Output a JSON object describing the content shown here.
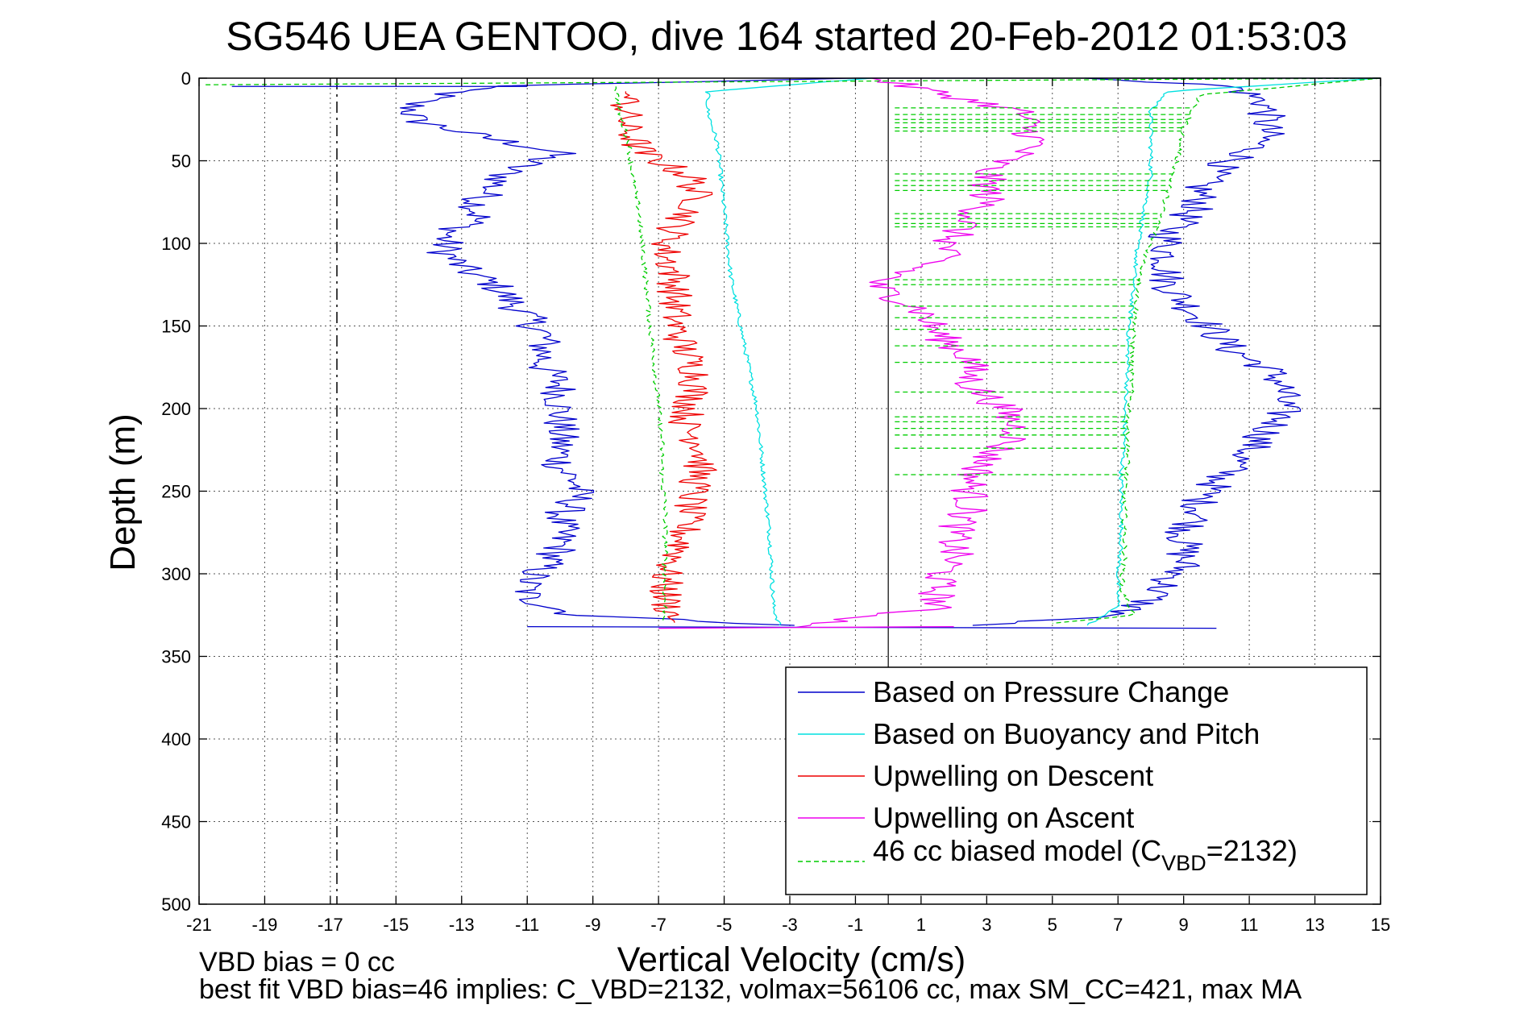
{
  "chart_data": {
    "type": "line",
    "title": "SG546 UEA GENTOO, dive 164 started 20-Feb-2012 01:53:03",
    "xlabel": "Vertical Velocity (cm/s)",
    "ylabel": "Depth (m)",
    "xlim": [
      -21,
      15
    ],
    "ylim": [
      500,
      0
    ],
    "y_reversed": true,
    "grid": true,
    "legend_position": "bottom-right",
    "xticks": [
      "-21",
      "-19",
      "-17",
      "-15",
      "-13",
      "-11",
      "-9",
      "-7",
      "-5",
      "-3",
      "-1",
      "1",
      "3",
      "5",
      "7",
      "9",
      "11",
      "13",
      "15"
    ],
    "yticks": [
      "0",
      "50",
      "100",
      "150",
      "200",
      "250",
      "300",
      "350",
      "400",
      "450",
      "500"
    ],
    "reference_lines": {
      "zero_line_x": 0,
      "dashed_line_x": -16.8
    },
    "series": [
      {
        "name": "Based on Pressure Change",
        "color": "#0000cc",
        "descent": {
          "depth": [
            0,
            5,
            15,
            25,
            35,
            45,
            55,
            65,
            75,
            85,
            95,
            105,
            115,
            125,
            135,
            145,
            155,
            165,
            175,
            185,
            195,
            205,
            215,
            225,
            235,
            245,
            255,
            265,
            275,
            285,
            295,
            305,
            315,
            325,
            332
          ],
          "velocity": [
            -1,
            -12.5,
            -14.5,
            -14.5,
            -12.5,
            -10,
            -11.5,
            -12,
            -12.5,
            -12.5,
            -13.5,
            -13.5,
            -13,
            -12,
            -11.5,
            -11,
            -10.5,
            -10.5,
            -10.5,
            -10,
            -10,
            -10,
            -10,
            -10,
            -10,
            -9.5,
            -9.5,
            -10,
            -10,
            -10,
            -10.5,
            -11,
            -11,
            -9.5,
            -2
          ]
        },
        "ascent": {
          "depth": [
            0,
            5,
            15,
            25,
            35,
            45,
            55,
            65,
            75,
            85,
            95,
            105,
            115,
            125,
            135,
            145,
            155,
            165,
            175,
            185,
            195,
            205,
            215,
            225,
            235,
            245,
            255,
            265,
            275,
            285,
            295,
            305,
            315,
            325,
            332
          ],
          "velocity": [
            6,
            10.5,
            11.5,
            11.5,
            11.5,
            11,
            10,
            9.5,
            9.5,
            9,
            8.5,
            8.5,
            8.5,
            8.5,
            9,
            9.5,
            10,
            10.5,
            11.5,
            12,
            12,
            12,
            11.5,
            11,
            10.5,
            10,
            9.5,
            9.5,
            9,
            9,
            9,
            8.5,
            8,
            7,
            2
          ]
        }
      },
      {
        "name": "Based on Buoyancy and Pitch",
        "color": "#00e0e0",
        "descent": {
          "depth": [
            0,
            8,
            20,
            40,
            60,
            80,
            100,
            120,
            140,
            160,
            180,
            200,
            220,
            240,
            260,
            280,
            300,
            320,
            332
          ],
          "velocity": [
            -0.5,
            -5.5,
            -5.5,
            -5.2,
            -5.1,
            -5,
            -4.9,
            -4.8,
            -4.6,
            -4.4,
            -4.2,
            -4,
            -3.9,
            -3.8,
            -3.7,
            -3.6,
            -3.55,
            -3.5,
            -3.3
          ]
        },
        "ascent": {
          "depth": [
            0,
            8,
            20,
            40,
            60,
            80,
            100,
            120,
            140,
            160,
            180,
            200,
            220,
            240,
            260,
            280,
            300,
            320,
            332
          ],
          "velocity": [
            15,
            8.5,
            8,
            8,
            8,
            7.8,
            7.6,
            7.5,
            7.4,
            7.3,
            7.3,
            7.2,
            7.2,
            7.1,
            7.1,
            7.1,
            7,
            7,
            6
          ]
        }
      },
      {
        "name": "Upwelling on Descent",
        "color": "#ee0000",
        "descent": {
          "depth": [
            8,
            20,
            30,
            45,
            60,
            75,
            90,
            105,
            120,
            135,
            150,
            165,
            180,
            195,
            210,
            225,
            240,
            255,
            270,
            285,
            300,
            315,
            330
          ],
          "velocity": [
            -8,
            -8,
            -8,
            -7.5,
            -6,
            -5.8,
            -6.5,
            -6.8,
            -6.5,
            -6.5,
            -6.5,
            -6.2,
            -5.8,
            -6,
            -6.2,
            -5.6,
            -5.8,
            -6,
            -6.2,
            -6.3,
            -6.8,
            -6.8,
            -6.5
          ]
        }
      },
      {
        "name": "Upwelling on Ascent",
        "color": "#ee00ee",
        "ascent": {
          "depth": [
            0,
            20,
            40,
            55,
            75,
            95,
            110,
            125,
            140,
            155,
            170,
            185,
            200,
            215,
            230,
            245,
            260,
            275,
            290,
            305,
            320,
            333
          ],
          "velocity": [
            -0.5,
            4,
            4.5,
            3,
            3,
            2,
            1.5,
            -0.5,
            1,
            1.5,
            2.5,
            2.5,
            3.5,
            4,
            3,
            2.5,
            2.5,
            2,
            2,
            1.5,
            1.5,
            -3
          ]
        }
      },
      {
        "name": "46 cc biased model (C_VBD=2132)",
        "color": "#00cc00",
        "dashed": true,
        "descent": {
          "depth": [
            5,
            20,
            40,
            60,
            80,
            100,
            120,
            140,
            160,
            180,
            200,
            220,
            240,
            260,
            280,
            300,
            320,
            330
          ],
          "velocity": [
            -8.3,
            -8.2,
            -7.9,
            -7.8,
            -7.6,
            -7.5,
            -7.4,
            -7.3,
            -7.2,
            -7.1,
            -7,
            -6.9,
            -6.9,
            -6.8,
            -6.8,
            -6.8,
            -6.8,
            -6.8
          ]
        },
        "ascent": {
          "depth": [
            0,
            10,
            30,
            50,
            70,
            90,
            110,
            130,
            150,
            170,
            190,
            210,
            230,
            250,
            270,
            290,
            310,
            325,
            330
          ],
          "velocity": [
            15,
            9.5,
            9,
            8.8,
            8.5,
            8.2,
            7.8,
            7.6,
            7.5,
            7.4,
            7.4,
            7.3,
            7.3,
            7.2,
            7.2,
            7.2,
            7.1,
            7.5,
            5
          ]
        },
        "horizontal_spikes_depth": [
          18,
          22,
          25,
          27,
          30,
          32,
          58,
          62,
          65,
          68,
          82,
          85,
          88,
          90,
          122,
          125,
          138,
          145,
          152,
          162,
          172,
          190,
          205,
          208,
          212,
          216,
          224,
          240
        ]
      }
    ],
    "legend": [
      {
        "label": "Based on Pressure Change",
        "color": "#0000cc",
        "dashed": false
      },
      {
        "label": "Based on Buoyancy and Pitch",
        "color": "#00e0e0",
        "dashed": false
      },
      {
        "label": "Upwelling on Descent",
        "color": "#ee0000",
        "dashed": false
      },
      {
        "label": "Upwelling on Ascent",
        "color": "#ee00ee",
        "dashed": false
      },
      {
        "label": "46 cc biased model (C",
        "sub": "VBD",
        "suffix": "=2132)",
        "color": "#00cc00",
        "dashed": true
      }
    ],
    "notes": {
      "vbd_bias": "VBD bias = 0 cc",
      "best_fit": "best fit VBD bias=46 implies: C_VBD=2132, volmax=56106 cc, max SM_CC=421, max MA"
    }
  }
}
